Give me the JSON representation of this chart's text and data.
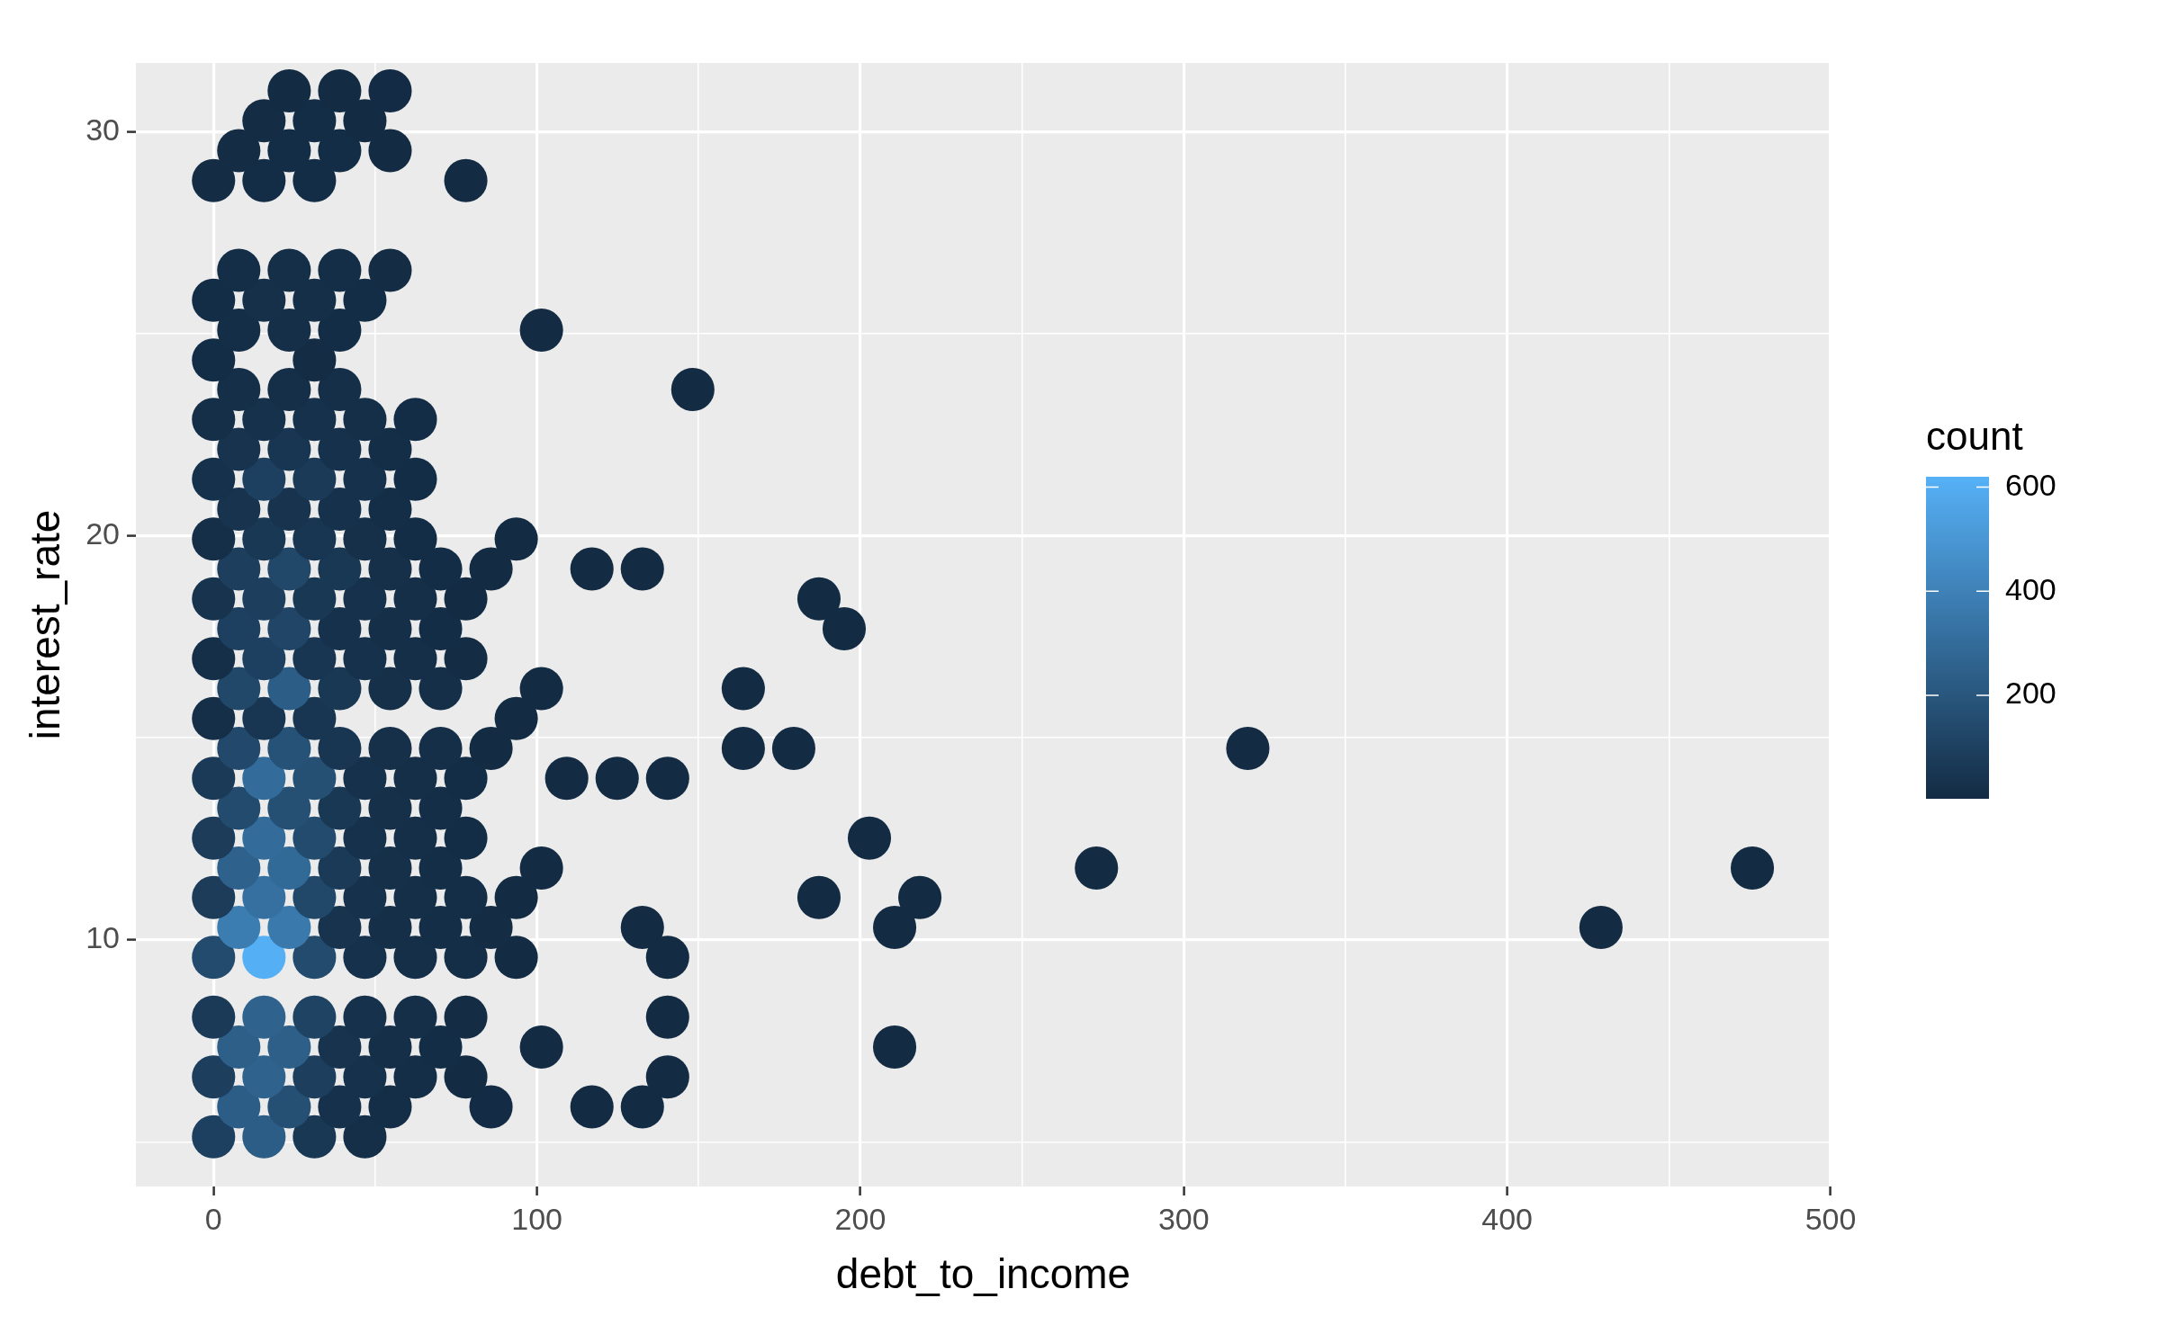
{
  "chart_data": {
    "type": "scatter",
    "xlabel": "debt_to_income",
    "ylabel": "interest_rate",
    "clabel": "count",
    "grid": true,
    "xlim": [
      -24,
      500
    ],
    "ylim": [
      3.9,
      31.7
    ],
    "xticks": [
      0,
      {
        "value": 50,
        "label": null
      },
      100,
      {
        "value": 150,
        "label": null
      },
      200,
      {
        "value": 250,
        "label": null
      },
      300,
      {
        "value": 350,
        "label": null
      },
      400,
      {
        "value": 450,
        "label": null
      },
      500
    ],
    "yticks": [
      {
        "value": 5,
        "label": null
      },
      10,
      {
        "value": 15,
        "label": null
      },
      20,
      {
        "value": 25,
        "label": null
      },
      30
    ],
    "clim": [
      1,
      620
    ],
    "cticks": [
      200,
      400,
      600
    ],
    "x": [
      0,
      15.6,
      31.2,
      46.8,
      7.8,
      23.4,
      39,
      54.6,
      85.8,
      117,
      132.6,
      0,
      15.6,
      31.2,
      46.8,
      62.4,
      78,
      140.4,
      7.8,
      23.4,
      39,
      54.6,
      70.2,
      101.4,
      210.6,
      0,
      15.6,
      31.2,
      46.8,
      62.4,
      78,
      140.4,
      0,
      15.6,
      31.2,
      46.8,
      62.4,
      78,
      93.6,
      140.4,
      7.8,
      23.4,
      39,
      54.6,
      70.2,
      85.8,
      132.6,
      210.6,
      429,
      0,
      15.6,
      31.2,
      46.8,
      62.4,
      78,
      93.6,
      187.2,
      218.4,
      7.8,
      23.4,
      39,
      54.6,
      70.2,
      101.4,
      273,
      475.8,
      0,
      15.6,
      31.2,
      46.8,
      62.4,
      78,
      202.8,
      7.8,
      23.4,
      39,
      54.6,
      70.2,
      0,
      15.6,
      31.2,
      46.8,
      62.4,
      78,
      109.2,
      124.8,
      140.4,
      7.8,
      23.4,
      39,
      54.6,
      70.2,
      85.8,
      163.8,
      179.4,
      319.8,
      0,
      15.6,
      31.2,
      93.6,
      7.8,
      23.4,
      39,
      54.6,
      70.2,
      101.4,
      163.8,
      0,
      15.6,
      31.2,
      46.8,
      62.4,
      78,
      7.8,
      23.4,
      39,
      54.6,
      70.2,
      195,
      0,
      15.6,
      31.2,
      46.8,
      62.4,
      78,
      187.2,
      7.8,
      23.4,
      39,
      54.6,
      70.2,
      85.8,
      117,
      132.6,
      0,
      15.6,
      31.2,
      46.8,
      62.4,
      93.6,
      7.8,
      23.4,
      39,
      54.6,
      0,
      15.6,
      31.2,
      46.8,
      62.4,
      7.8,
      23.4,
      39,
      54.6,
      0,
      15.6,
      31.2,
      46.8,
      62.4,
      7.8,
      23.4,
      39,
      148.2,
      0,
      31.2,
      7.8,
      23.4,
      39,
      101.4,
      0,
      15.6,
      31.2,
      46.8,
      7.8,
      23.4,
      39,
      54.6,
      0,
      15.6,
      31.2,
      78,
      7.8,
      23.4,
      39,
      54.6,
      15.6,
      31.2,
      46.8,
      23.4,
      39,
      54.6
    ],
    "values": [
      5.13,
      5.13,
      5.13,
      5.13,
      5.87,
      5.87,
      5.87,
      5.87,
      5.87,
      5.87,
      5.87,
      6.61,
      6.61,
      6.61,
      6.61,
      6.61,
      6.61,
      6.61,
      7.35,
      7.35,
      7.35,
      7.35,
      7.35,
      7.35,
      7.35,
      8.09,
      8.09,
      8.09,
      8.09,
      8.09,
      8.09,
      8.09,
      9.57,
      9.57,
      9.57,
      9.57,
      9.57,
      9.57,
      9.57,
      9.57,
      10.31,
      10.31,
      10.31,
      10.31,
      10.31,
      10.31,
      10.31,
      10.31,
      10.31,
      11.05,
      11.05,
      11.05,
      11.05,
      11.05,
      11.05,
      11.05,
      11.05,
      11.05,
      11.78,
      11.78,
      11.78,
      11.78,
      11.78,
      11.78,
      11.78,
      11.78,
      12.52,
      12.52,
      12.52,
      12.52,
      12.52,
      12.52,
      12.52,
      13.26,
      13.26,
      13.26,
      13.26,
      13.26,
      14.0,
      14.0,
      14.0,
      14.0,
      14.0,
      14.0,
      14.0,
      14.0,
      14.0,
      14.74,
      14.74,
      14.74,
      14.74,
      14.74,
      14.74,
      14.74,
      14.74,
      14.74,
      15.48,
      15.48,
      15.48,
      15.48,
      16.22,
      16.22,
      16.22,
      16.22,
      16.22,
      16.22,
      16.22,
      16.96,
      16.96,
      16.96,
      16.96,
      16.96,
      16.96,
      17.7,
      17.7,
      17.7,
      17.7,
      17.7,
      17.7,
      18.44,
      18.44,
      18.44,
      18.44,
      18.44,
      18.44,
      18.44,
      19.18,
      19.18,
      19.18,
      19.18,
      19.18,
      19.18,
      19.18,
      19.18,
      19.92,
      19.92,
      19.92,
      19.92,
      19.92,
      19.92,
      20.66,
      20.66,
      20.66,
      20.66,
      21.4,
      21.4,
      21.4,
      21.4,
      21.4,
      22.14,
      22.14,
      22.14,
      22.14,
      22.88,
      22.88,
      22.88,
      22.88,
      22.88,
      23.62,
      23.62,
      23.62,
      23.62,
      24.35,
      24.35,
      25.09,
      25.09,
      25.09,
      25.09,
      25.83,
      25.83,
      25.83,
      25.83,
      26.57,
      26.57,
      26.57,
      26.57,
      28.79,
      28.79,
      28.79,
      28.79,
      29.53,
      29.53,
      29.53,
      29.53,
      30.27,
      30.27,
      30.27,
      31.01,
      31.01,
      31.01
    ],
    "cvalues": [
      100,
      230,
      60,
      20,
      230,
      170,
      30,
      15,
      3,
      2,
      2,
      90,
      260,
      90,
      30,
      15,
      5,
      2,
      240,
      240,
      40,
      20,
      10,
      1,
      1,
      70,
      260,
      110,
      30,
      20,
      8,
      1,
      150,
      610,
      150,
      30,
      20,
      15,
      5,
      1,
      380,
      360,
      40,
      20,
      15,
      8,
      2,
      1,
      1,
      80,
      320,
      130,
      30,
      20,
      15,
      5,
      1,
      1,
      250,
      290,
      70,
      25,
      15,
      1,
      1,
      1,
      80,
      300,
      150,
      30,
      20,
      10,
      1,
      150,
      170,
      60,
      25,
      15,
      70,
      300,
      170,
      30,
      20,
      10,
      1,
      1,
      1,
      140,
      180,
      50,
      25,
      20,
      5,
      1,
      1,
      1,
      20,
      50,
      50,
      2,
      130,
      230,
      60,
      25,
      20,
      1,
      1,
      20,
      100,
      50,
      30,
      20,
      8,
      100,
      120,
      30,
      20,
      10,
      1,
      40,
      90,
      60,
      30,
      20,
      5,
      1,
      90,
      130,
      60,
      25,
      10,
      5,
      1,
      1,
      20,
      60,
      50,
      25,
      10,
      2,
      40,
      40,
      30,
      15,
      30,
      100,
      70,
      30,
      10,
      40,
      50,
      30,
      15,
      20,
      30,
      30,
      20,
      10,
      20,
      20,
      20,
      1,
      10,
      8,
      15,
      20,
      10,
      1,
      10,
      25,
      20,
      10,
      15,
      20,
      15,
      8,
      8,
      12,
      10,
      1,
      8,
      10,
      10,
      5,
      8,
      10,
      5,
      5,
      5,
      3
    ]
  }
}
